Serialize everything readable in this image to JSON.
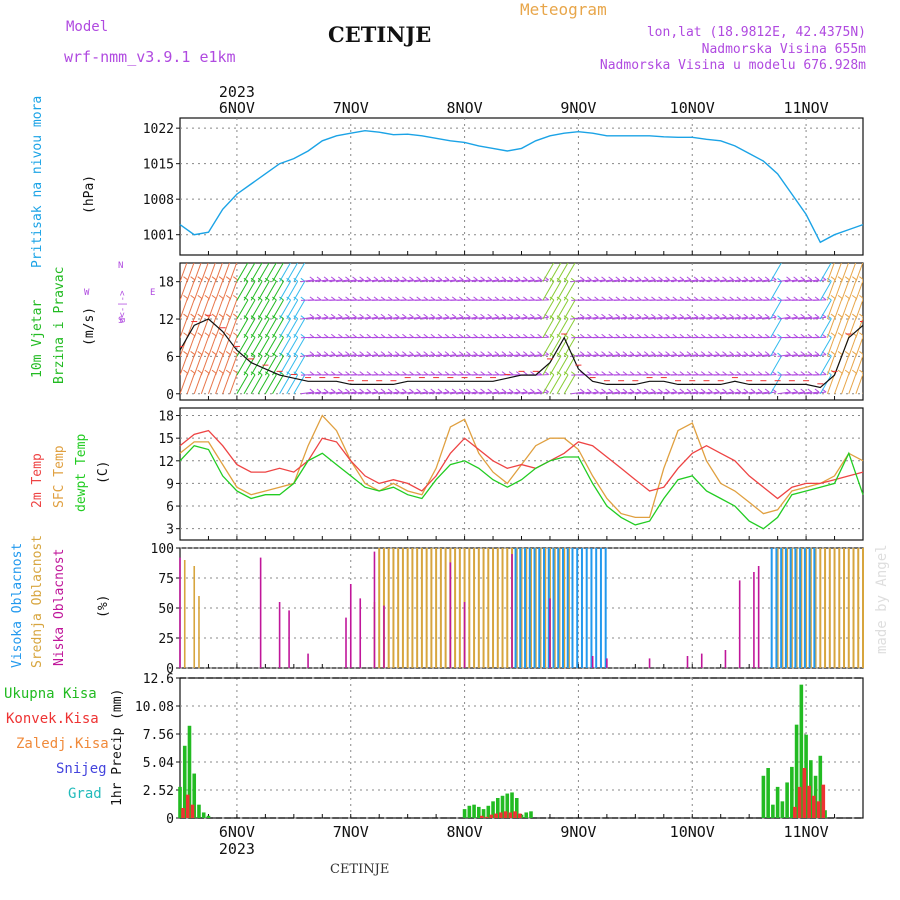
{
  "header": {
    "model_label": "Model",
    "model_name": "wrf-nmm_v3.9.1  e1km",
    "station_title": "CETINJE",
    "meteogram_label": "Meteogram",
    "lonlat": "lon,lat (18.9812E, 42.4375N)",
    "elevation": "Nadmorska Visina 655m",
    "model_elevation": "Nadmorska Visina u modelu 676.928m",
    "footer_station": "CETINJE",
    "watermark": "made by Angel"
  },
  "colors": {
    "pressure": "#1ba3e6",
    "purple": "#b04ae0",
    "orange": "#e8a64a",
    "temp2m": "#ee4444",
    "sfc": "#e0a040",
    "dew": "#22cc22",
    "high_cloud": "#2299ee",
    "mid_cloud": "#d7a53e",
    "low_cloud": "#c0169a",
    "total_precip": "#22bb22",
    "conv_precip": "#ee3333",
    "snow": "#4444dd",
    "grad": "#22bbbb",
    "freezing": "#f08a3a"
  },
  "axis_x": {
    "year_label": "2023",
    "days": [
      "6NOV",
      "7NOV",
      "8NOV",
      "9NOV",
      "10NOV",
      "11NOV"
    ],
    "start_hour": -12,
    "end_hour": 132
  },
  "panels": {
    "pressure": {
      "ylabel_main": "Pritisak na nivou mora",
      "ylabel_unit": "(hPa)"
    },
    "wind": {
      "ylabel_main": "10m Vjetar",
      "ylabel_sub": "Brzina i Pravac",
      "ylabel_unit": "(m/s)",
      "compass_n": "N",
      "compass_e": "E",
      "compass_w": "W",
      "compass_s": "S",
      "compass_mark": "ɑ<-|->"
    },
    "temperature": {
      "ylabel_2m": "2m Temp",
      "ylabel_sfc": "SFC Temp",
      "ylabel_dew": "dewpt Temp",
      "ylabel_unit": "(C)"
    },
    "cloud": {
      "ylabel_high": "Visoka Oblacnost",
      "ylabel_mid": "Srednja Oblacnost",
      "ylabel_low": "Niska Oblacnost",
      "ylabel_unit": "(%)"
    },
    "precip": {
      "ylabel": "1hr Precip (mm)",
      "legend": [
        "Ukupna Kisa",
        "Konvek.Kisa",
        "Zaledj.Kisa",
        "Snijeg",
        "Grad"
      ]
    }
  },
  "chart_data": [
    {
      "type": "line",
      "title": "",
      "ylabel": "Pritisak na nivou mora (hPa)",
      "ylim": [
        997,
        1024
      ],
      "yticks": [
        1001,
        1008,
        1015,
        1022
      ],
      "x_hours": [
        -12,
        -9,
        -6,
        -3,
        0,
        3,
        6,
        9,
        12,
        15,
        18,
        21,
        24,
        27,
        30,
        33,
        36,
        39,
        42,
        45,
        48,
        51,
        54,
        57,
        60,
        63,
        66,
        69,
        72,
        75,
        78,
        81,
        84,
        87,
        90,
        93,
        96,
        99,
        102,
        105,
        108,
        111,
        114,
        117,
        120,
        123,
        126,
        129,
        132
      ],
      "series": [
        {
          "values": [
            1003,
            1001,
            1001.5,
            1006,
            1009,
            1011,
            1013,
            1015,
            1016,
            1017.5,
            1019.5,
            1020.5,
            1021,
            1021.5,
            1021.2,
            1020.7,
            1020.8,
            1020.5,
            1020,
            1019.5,
            1019.2,
            1018.5,
            1018,
            1017.5,
            1018,
            1019.5,
            1020.5,
            1021,
            1021.3,
            1021,
            1020.5,
            1020.5,
            1020.5,
            1020.5,
            1020.3,
            1020.2,
            1020.2,
            1019.8,
            1019.5,
            1018.5,
            1017,
            1015.5,
            1013,
            1009,
            1005,
            999.5,
            1001,
            1002,
            1003
          ]
        }
      ]
    },
    {
      "type": "line",
      "title": "",
      "ylabel": "10m Vjetar Brzina i Pravac (m/s)",
      "ylim": [
        -1,
        21
      ],
      "yticks": [
        0,
        6,
        12,
        18
      ],
      "x_hours": [
        -12,
        -9,
        -6,
        -3,
        0,
        3,
        6,
        9,
        12,
        15,
        18,
        21,
        24,
        27,
        30,
        33,
        36,
        39,
        42,
        45,
        48,
        51,
        54,
        57,
        60,
        63,
        66,
        69,
        72,
        75,
        78,
        81,
        84,
        87,
        90,
        93,
        96,
        99,
        102,
        105,
        108,
        111,
        114,
        117,
        120,
        123,
        126,
        129,
        132
      ],
      "series": [
        {
          "values": [
            7,
            11,
            12,
            10,
            7,
            5,
            4,
            3,
            2.5,
            2,
            2,
            2,
            1.5,
            1.5,
            1.5,
            1.5,
            2,
            2,
            2,
            2,
            2,
            2,
            2,
            2.5,
            3,
            3,
            5,
            9,
            4,
            2,
            1.5,
            1.5,
            1.5,
            2,
            2,
            1.5,
            1.5,
            1.5,
            1.5,
            2,
            1.5,
            1.5,
            1.5,
            1.5,
            1.5,
            1,
            3,
            9,
            11
          ]
        }
      ],
      "bands": [
        {
          "from": 0,
          "to": 8,
          "color": "#22bb22"
        },
        {
          "from": 9,
          "to": 13,
          "color": "#33bbee"
        },
        {
          "from": 64,
          "to": 70,
          "color": "#88cc33"
        },
        {
          "from": 112,
          "to": 113,
          "color": "#33bbee"
        },
        {
          "from": 122,
          "to": 124,
          "color": "#33bbee"
        },
        {
          "from": 124,
          "to": 132,
          "color": "#e8a64a"
        }
      ]
    },
    {
      "type": "line",
      "title": "",
      "ylabel": "Temp (C)",
      "ylim": [
        1.5,
        19
      ],
      "yticks": [
        3,
        6,
        9,
        12,
        15,
        18
      ],
      "x_hours": [
        -12,
        -9,
        -6,
        -3,
        0,
        3,
        6,
        9,
        12,
        15,
        18,
        21,
        24,
        27,
        30,
        33,
        36,
        39,
        42,
        45,
        48,
        51,
        54,
        57,
        60,
        63,
        66,
        69,
        72,
        75,
        78,
        81,
        84,
        87,
        90,
        93,
        96,
        99,
        102,
        105,
        108,
        111,
        114,
        117,
        120,
        123,
        126,
        129,
        132
      ],
      "series": [
        {
          "name": "2m Temp",
          "values": [
            14,
            15.5,
            16,
            14,
            11.5,
            10.5,
            10.5,
            11,
            10.5,
            12,
            15,
            14.5,
            12,
            10,
            9,
            9.5,
            9,
            8,
            10,
            13,
            15,
            13.5,
            12,
            11,
            11.5,
            11,
            12,
            13,
            14.5,
            14,
            12.5,
            11,
            9.5,
            8,
            8.5,
            11,
            13,
            14,
            13,
            12,
            10,
            8.5,
            7,
            8.5,
            9,
            9,
            9.5,
            10,
            10.5
          ]
        },
        {
          "name": "SFC Temp",
          "values": [
            13,
            14.5,
            14.5,
            11.5,
            8.5,
            7.5,
            8,
            8.5,
            9,
            14,
            18,
            16,
            12,
            9,
            8,
            9,
            8,
            7.5,
            11,
            16.5,
            17.5,
            13,
            10.5,
            9,
            11.5,
            14,
            15,
            15,
            13.5,
            10,
            7,
            5,
            4.5,
            4.5,
            11,
            16,
            17,
            12,
            9,
            8,
            6.5,
            5,
            5.5,
            8,
            8.5,
            9,
            10,
            13,
            12
          ]
        },
        {
          "name": "dewpt Temp",
          "values": [
            12,
            14,
            13.5,
            10,
            8,
            7,
            7.5,
            7.5,
            9,
            12,
            13,
            11.5,
            10,
            8.5,
            8,
            8.5,
            7.5,
            7,
            9.5,
            11.5,
            12,
            11,
            9.5,
            8.5,
            9.5,
            11,
            12,
            12.5,
            12.5,
            9,
            6,
            4.5,
            3.5,
            4,
            7,
            9.5,
            10,
            8,
            7,
            6,
            4,
            3,
            4.5,
            7.5,
            8,
            8.5,
            9,
            13,
            7.5
          ]
        }
      ]
    },
    {
      "type": "bar",
      "title": "",
      "ylabel": "Oblacnost (%)",
      "ylim": [
        0,
        100
      ],
      "yticks": [
        0,
        25,
        50,
        75,
        100
      ],
      "series": [
        {
          "name": "Visoka Oblacnost",
          "bursts": [
            {
              "from": 59,
              "to": 78,
              "value": 100
            },
            {
              "from": 113,
              "to": 122,
              "value": 100
            }
          ]
        },
        {
          "name": "Srednja Oblacnost",
          "bursts": [
            {
              "from": 30,
              "to": 70,
              "value": 100
            },
            {
              "from": 114,
              "to": 132,
              "value": 100
            }
          ],
          "isolated": [
            {
              "x": -11,
              "value": 90
            },
            {
              "x": -9,
              "value": 85
            },
            {
              "x": -8,
              "value": 60
            },
            {
              "x": 29,
              "value": 55
            }
          ]
        },
        {
          "name": "Niska Oblacnost",
          "isolated": [
            {
              "x": -12,
              "value": 92
            },
            {
              "x": 5,
              "value": 92
            },
            {
              "x": 9,
              "value": 55
            },
            {
              "x": 11,
              "value": 48
            },
            {
              "x": 15,
              "value": 12
            },
            {
              "x": 23,
              "value": 42
            },
            {
              "x": 24,
              "value": 70
            },
            {
              "x": 26,
              "value": 58
            },
            {
              "x": 29,
              "value": 97
            },
            {
              "x": 31,
              "value": 52
            },
            {
              "x": 45,
              "value": 88
            },
            {
              "x": 48,
              "value": 55
            },
            {
              "x": 58,
              "value": 95
            },
            {
              "x": 66,
              "value": 58
            },
            {
              "x": 75,
              "value": 10
            },
            {
              "x": 78,
              "value": 8
            },
            {
              "x": 87,
              "value": 8
            },
            {
              "x": 95,
              "value": 10
            },
            {
              "x": 98,
              "value": 12
            },
            {
              "x": 103,
              "value": 15
            },
            {
              "x": 106,
              "value": 73
            },
            {
              "x": 109,
              "value": 80
            },
            {
              "x": 110,
              "value": 85
            }
          ]
        }
      ]
    },
    {
      "type": "bar",
      "title": "",
      "ylabel": "1hr Precip (mm)",
      "ylim": [
        0,
        12.6
      ],
      "yticks": [
        0,
        2.52,
        5.04,
        7.56,
        10.08,
        12.6
      ],
      "series": [
        {
          "name": "Ukupna Kisa",
          "points": [
            [
              -12,
              2.8
            ],
            [
              -11,
              6.5
            ],
            [
              -10,
              8.3
            ],
            [
              -9,
              4.0
            ],
            [
              -8,
              1.2
            ],
            [
              -7,
              0.5
            ],
            [
              -6,
              0.2
            ],
            [
              48,
              0.8
            ],
            [
              49,
              1.1
            ],
            [
              50,
              1.2
            ],
            [
              51,
              1.0
            ],
            [
              52,
              0.8
            ],
            [
              53,
              1.1
            ],
            [
              54,
              1.5
            ],
            [
              55,
              1.8
            ],
            [
              56,
              2.0
            ],
            [
              57,
              2.2
            ],
            [
              58,
              2.3
            ],
            [
              59,
              1.8
            ],
            [
              60,
              0.3
            ],
            [
              61,
              0.5
            ],
            [
              62,
              0.6
            ],
            [
              111,
              3.8
            ],
            [
              112,
              4.5
            ],
            [
              113,
              1.2
            ],
            [
              114,
              2.8
            ],
            [
              115,
              1.5
            ],
            [
              116,
              3.2
            ],
            [
              117,
              4.6
            ],
            [
              118,
              8.4
            ],
            [
              119,
              12.0
            ],
            [
              120,
              7.5
            ],
            [
              121,
              5.2
            ],
            [
              122,
              3.8
            ],
            [
              123,
              5.6
            ],
            [
              124,
              0.7
            ]
          ]
        },
        {
          "name": "Konvek.Kisa",
          "points": [
            [
              -12,
              0.9
            ],
            [
              -11,
              2.1
            ],
            [
              -10,
              1.2
            ],
            [
              51,
              0.2
            ],
            [
              52,
              0.1
            ],
            [
              53,
              0.3
            ],
            [
              54,
              0.4
            ],
            [
              55,
              0.5
            ],
            [
              56,
              0.6
            ],
            [
              57,
              0.5
            ],
            [
              58,
              0.6
            ],
            [
              59,
              0.4
            ],
            [
              117,
              1.0
            ],
            [
              118,
              2.8
            ],
            [
              119,
              4.5
            ],
            [
              120,
              2.9
            ],
            [
              121,
              2.0
            ],
            [
              122,
              1.5
            ],
            [
              123,
              3.0
            ]
          ]
        },
        {
          "name": "Zaledj.Kisa",
          "points": []
        },
        {
          "name": "Snijeg",
          "points": []
        },
        {
          "name": "Grad",
          "points": []
        }
      ]
    }
  ]
}
